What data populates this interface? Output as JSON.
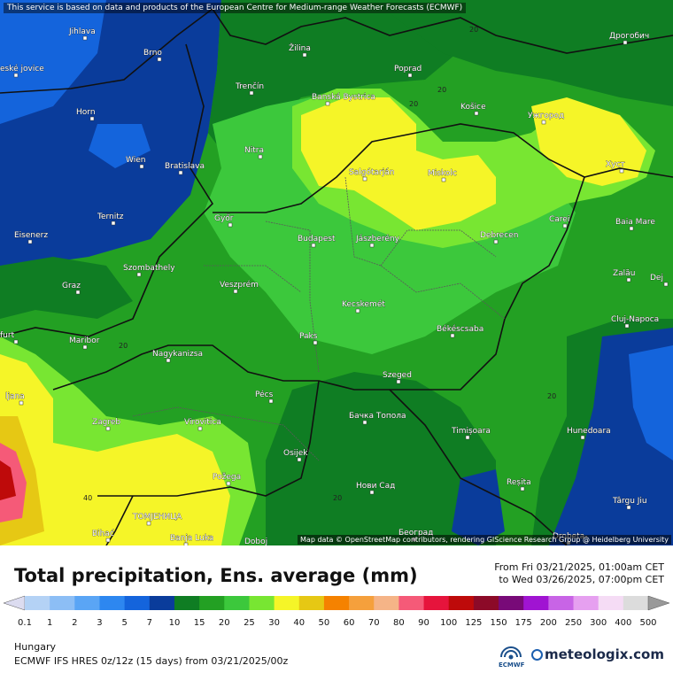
{
  "disclaimer": "This service is based on data and products of the European Centre for Medium-range Weather Forecasts (ECMWF)",
  "attribution": "Map data © OpenStreetMap contributors, rendering GIScience Research Group @ Heidelberg University",
  "title": "Total precipitation, Ens. average (mm)",
  "time_from": "From Fri 03/21/2025, 01:00am CET",
  "time_to": "to Wed 03/26/2025, 07:00pm CET",
  "region": "Hungary",
  "model_info": "ECMWF IFS HRES 0z/12z (15 days) from 03/21/2025/00z",
  "ecmwf_logo_text": "ECMWF",
  "brand": "meteologix.com",
  "legend": {
    "labels": [
      "0.1",
      "1",
      "2",
      "3",
      "5",
      "7",
      "10",
      "15",
      "20",
      "25",
      "30",
      "40",
      "50",
      "60",
      "70",
      "80",
      "90",
      "100",
      "125",
      "150",
      "175",
      "200",
      "250",
      "300",
      "400",
      "500"
    ],
    "colors": [
      "#dcdcf0",
      "#b4d2f5",
      "#8cbef5",
      "#5aa5f5",
      "#2d87f0",
      "#1464dc",
      "#0a3c9b",
      "#0f7d23",
      "#23a023",
      "#3cc83c",
      "#78e632",
      "#f5f528",
      "#e6c814",
      "#f58200",
      "#f5a03c",
      "#f5b487",
      "#f55a78",
      "#e6143c",
      "#be0a0a",
      "#8c0a28",
      "#780a78",
      "#a014d2",
      "#c864e6",
      "#e6a0f0",
      "#f5dcf5",
      "#dcdcdc"
    ]
  },
  "cities": [
    {
      "name": "Jihlava"
    },
    {
      "name": "Brno"
    },
    {
      "name": "Žilina"
    },
    {
      "name": "Poprad"
    },
    {
      "name": "Дрогобич"
    },
    {
      "name": "Trenčín"
    },
    {
      "name": "Banská Bystrica"
    },
    {
      "name": "Košice"
    },
    {
      "name": "Ужгород"
    },
    {
      "name": "Horn"
    },
    {
      "name": "Nitra"
    },
    {
      "name": "Wien"
    },
    {
      "name": "Bratislava"
    },
    {
      "name": "Salgótarján"
    },
    {
      "name": "Miskolc"
    },
    {
      "name": "Хуст"
    },
    {
      "name": "Ternitz"
    },
    {
      "name": "Győr"
    },
    {
      "name": "Budapest"
    },
    {
      "name": "Jászberény"
    },
    {
      "name": "Debrecen"
    },
    {
      "name": "Carei"
    },
    {
      "name": "Baia Mare"
    },
    {
      "name": "Eisenerz"
    },
    {
      "name": "Szombathely"
    },
    {
      "name": "Zalău"
    },
    {
      "name": "Graz"
    },
    {
      "name": "Veszprém"
    },
    {
      "name": "Kecskemét"
    },
    {
      "name": "Cluj-Napoca"
    },
    {
      "name": "Maribor"
    },
    {
      "name": "Paks"
    },
    {
      "name": "Békéscsaba"
    },
    {
      "name": "Nagykanizsa"
    },
    {
      "name": "Pécs"
    },
    {
      "name": "Szeged"
    },
    {
      "name": "Zagreb"
    },
    {
      "name": "Virovitica"
    },
    {
      "name": "Бачка Топола"
    },
    {
      "name": "Timișoara"
    },
    {
      "name": "Hunedoara"
    },
    {
      "name": "Osijek"
    },
    {
      "name": "Požega"
    },
    {
      "name": "Нови Сад"
    },
    {
      "name": "Reșita"
    },
    {
      "name": "Târgu Jiu"
    },
    {
      "name": "ТОМЈЕНИЦА"
    },
    {
      "name": "Bihać"
    },
    {
      "name": "Banja Luka"
    },
    {
      "name": "Doboj"
    },
    {
      "name": "Београд"
    },
    {
      "name": "Drobeta-"
    },
    {
      "name": "Dej"
    },
    {
      "name": "ljana"
    },
    {
      "name": "furt"
    },
    {
      "name": "eské jovice"
    }
  ],
  "contour_labels": [
    "20",
    "20",
    "20",
    "20",
    "40",
    "20",
    "20"
  ]
}
